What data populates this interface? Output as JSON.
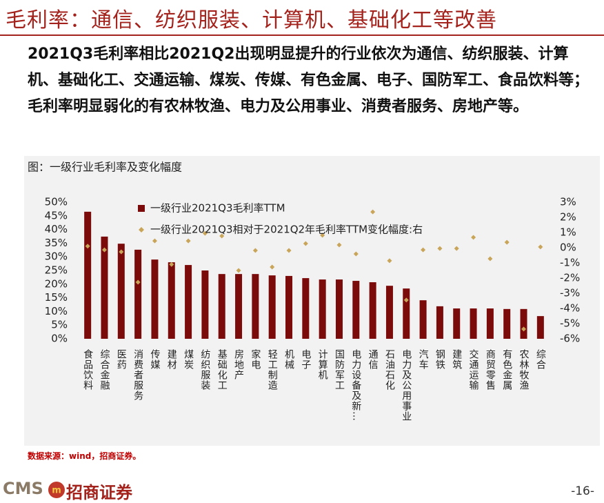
{
  "title": "毛利率：通信、纺织服装、计算机、基础化工等改善",
  "paragraph": "2021Q3毛利率相比2021Q2出现明显提升的行业依次为通信、纺织服装、计算机、基础化工、交通运输、煤炭、传媒、有色金属、电子、国防军工、食品饮料等；毛利率明显弱化的有农林牧渔、电力及公用事业、消费者服务、房地产等。",
  "source": "数据来源：wind，招商证券。",
  "footer": {
    "logo": "CMS",
    "brand": "招商证券",
    "page": "-16-"
  },
  "chart_data": {
    "type": "bar",
    "title": "图：一级行业毛利率及变化幅度",
    "categories": [
      "食品饮料",
      "综合金融",
      "医药",
      "消费者服务",
      "传媒",
      "建材",
      "煤炭",
      "纺织服装",
      "基础化工",
      "房地产",
      "家电",
      "轻工制造",
      "机械",
      "电子",
      "计算机",
      "国防军工",
      "电力设备及新…",
      "通信",
      "石油石化",
      "电力及公用事业",
      "汽车",
      "钢铁",
      "建筑",
      "交通运输",
      "商贸零售",
      "有色金属",
      "农林牧渔",
      "综合"
    ],
    "series": [
      {
        "name": "一级行业2021Q3毛利率TTM",
        "type": "bar",
        "color": "#7b0a0a",
        "values": [
          46.5,
          37.4,
          34.8,
          32.6,
          29.0,
          28.0,
          27.0,
          25.0,
          23.7,
          23.7,
          23.7,
          23.2,
          23.0,
          22.2,
          21.7,
          21.7,
          21.2,
          20.7,
          19.4,
          18.4,
          14.1,
          11.9,
          11.1,
          11.1,
          11.1,
          10.9,
          10.9,
          8.3
        ]
      },
      {
        "name": "一级行业2021Q3相对于2021Q2年毛利率TTM变化幅度:右",
        "type": "scatter",
        "axis": "y2",
        "color": "#c9a55a",
        "values": [
          0.1,
          -0.14,
          -0.27,
          -2.27,
          0.45,
          -1.1,
          0.45,
          0.95,
          0.77,
          -1.5,
          -0.18,
          -1.27,
          -0.18,
          0.27,
          0.82,
          0.18,
          -0.41,
          2.36,
          -0.86,
          -3.45,
          -0.14,
          -0.05,
          -0.05,
          0.68,
          -0.73,
          0.36,
          -5.36,
          0.05
        ]
      }
    ],
    "ylim": [
      0,
      50
    ],
    "yticks": [
      {
        "value": 0,
        "label": "0%"
      },
      {
        "value": 5,
        "label": "5%"
      },
      {
        "value": 10,
        "label": "10%"
      },
      {
        "value": 15,
        "label": "15%"
      },
      {
        "value": 20,
        "label": "20%"
      },
      {
        "value": 25,
        "label": "25%"
      },
      {
        "value": 30,
        "label": "30%"
      },
      {
        "value": 35,
        "label": "35%"
      },
      {
        "value": 40,
        "label": "40%"
      },
      {
        "value": 45,
        "label": "45%"
      },
      {
        "value": 50,
        "label": "50%"
      }
    ],
    "y2lim": [
      -6,
      3
    ],
    "y2ticks": [
      {
        "value": -6,
        "label": "-6%"
      },
      {
        "value": -5,
        "label": "-5%"
      },
      {
        "value": -4,
        "label": "-4%"
      },
      {
        "value": -3,
        "label": "-3%"
      },
      {
        "value": -2,
        "label": "-2%"
      },
      {
        "value": -1,
        "label": "-1%"
      },
      {
        "value": 0,
        "label": "0%"
      },
      {
        "value": 1,
        "label": "1%"
      },
      {
        "value": 2,
        "label": "2%"
      },
      {
        "value": 3,
        "label": "3%"
      }
    ],
    "grid": false,
    "legend": "top"
  }
}
